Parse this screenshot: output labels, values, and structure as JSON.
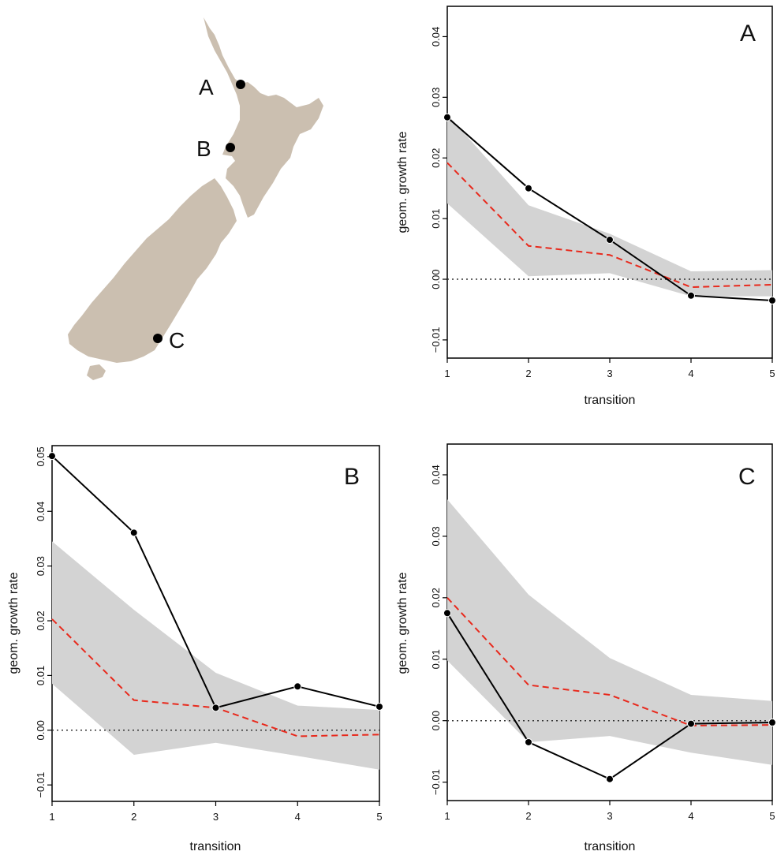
{
  "map": {
    "land_color": "#cbbfb0",
    "sites": [
      {
        "label": "A"
      },
      {
        "label": "B"
      },
      {
        "label": "C"
      }
    ]
  },
  "colors": {
    "observed": "#000000",
    "expected": "#e8291c",
    "envelope": "#d3d3d3",
    "zero_line": "#333333"
  },
  "chart_data": [
    {
      "type": "line",
      "panel_label": "A",
      "xlabel": "transition",
      "ylabel": "geom. growth rate",
      "x": [
        1,
        2,
        3,
        4,
        5
      ],
      "xlim": [
        1,
        5
      ],
      "ylim": [
        -0.013,
        0.045
      ],
      "yticks": [
        -0.01,
        0.0,
        0.01,
        0.02,
        0.03,
        0.04
      ],
      "ytick_labels": [
        "−0.01",
        "0.00",
        "0.01",
        "0.02",
        "0.03",
        "0.04"
      ],
      "xtick_labels": [
        "1",
        "2",
        "3",
        "4",
        "5"
      ],
      "series": [
        {
          "role": "observed",
          "values": [
            0.0267,
            0.015,
            0.0065,
            -0.0027,
            -0.0035
          ]
        },
        {
          "role": "expected",
          "values": [
            0.0192,
            0.0055,
            0.004,
            -0.0013,
            -0.0009
          ]
        }
      ],
      "band": {
        "lower": [
          0.0125,
          0.0005,
          0.001,
          -0.0028,
          -0.0028
        ],
        "upper": [
          0.0272,
          0.0122,
          0.0075,
          0.0013,
          0.0015
        ]
      },
      "reference_line": 0,
      "grid": false
    },
    {
      "type": "line",
      "panel_label": "B",
      "xlabel": "transition",
      "ylabel": "geom. growth rate",
      "x": [
        1,
        2,
        3,
        4,
        5
      ],
      "xlim": [
        1,
        5
      ],
      "ylim": [
        -0.013,
        0.052
      ],
      "yticks": [
        -0.01,
        0.0,
        0.01,
        0.02,
        0.03,
        0.04,
        0.05
      ],
      "ytick_labels": [
        "−0.01",
        "0.00",
        "0.01",
        "0.02",
        "0.03",
        "0.04",
        "0.05"
      ],
      "xtick_labels": [
        "1",
        "2",
        "3",
        "4",
        "5"
      ],
      "series": [
        {
          "role": "observed",
          "values": [
            0.0501,
            0.0361,
            0.0041,
            0.008,
            0.0043
          ]
        },
        {
          "role": "expected",
          "values": [
            0.0203,
            0.0055,
            0.0041,
            -0.0011,
            -0.0008
          ]
        }
      ],
      "band": {
        "lower": [
          0.0085,
          -0.0045,
          -0.0023,
          -0.0047,
          -0.0072
        ],
        "upper": [
          0.0345,
          0.022,
          0.0105,
          0.0045,
          0.0037
        ]
      },
      "reference_line": 0,
      "grid": false
    },
    {
      "type": "line",
      "panel_label": "C",
      "xlabel": "transition",
      "ylabel": "geom. growth rate",
      "x": [
        1,
        2,
        3,
        4,
        5
      ],
      "xlim": [
        1,
        5
      ],
      "ylim": [
        -0.013,
        0.045
      ],
      "yticks": [
        -0.01,
        0.0,
        0.01,
        0.02,
        0.03,
        0.04
      ],
      "ytick_labels": [
        "−0.01",
        "0.00",
        "0.01",
        "0.02",
        "0.03",
        "0.04"
      ],
      "xtick_labels": [
        "1",
        "2",
        "3",
        "4",
        "5"
      ],
      "series": [
        {
          "role": "observed",
          "values": [
            0.0175,
            -0.0035,
            -0.0095,
            -0.0005,
            -0.0003
          ]
        },
        {
          "role": "expected",
          "values": [
            0.02,
            0.0058,
            0.0042,
            -0.0008,
            -0.0007
          ]
        }
      ],
      "band": {
        "lower": [
          0.0098,
          -0.0035,
          -0.0025,
          -0.0052,
          -0.0072
        ],
        "upper": [
          0.036,
          0.0205,
          0.0102,
          0.0042,
          0.0032
        ]
      },
      "reference_line": 0,
      "grid": false
    }
  ]
}
